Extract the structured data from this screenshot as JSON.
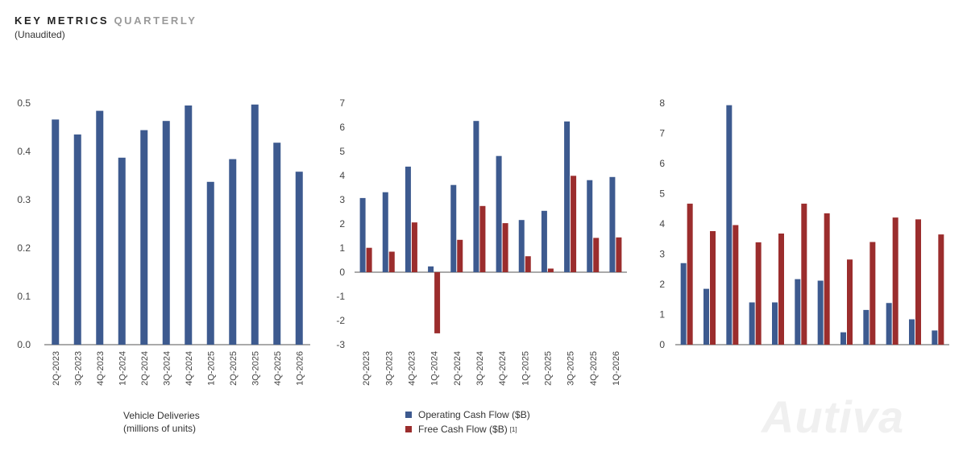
{
  "header": {
    "title_main": "KEY METRICS",
    "title_sub": "QUARTERLY",
    "subtitle": "(Unaudited)"
  },
  "watermark": "Autiva",
  "colors": {
    "blue": "#3d5a8f",
    "red": "#9b2d2d",
    "axis": "#444444"
  },
  "chart_data": [
    {
      "type": "bar",
      "caption_line1": "Vehicle Deliveries",
      "caption_line2": "(millions of units)",
      "categories": [
        "2Q-2023",
        "3Q-2023",
        "4Q-2023",
        "1Q-2024",
        "2Q-2024",
        "3Q-2024",
        "4Q-2024",
        "1Q-2025",
        "2Q-2025",
        "3Q-2025",
        "4Q-2025",
        "1Q-2026"
      ],
      "yticks": [
        "0.0",
        "0.1",
        "0.2",
        "0.3",
        "0.4",
        "0.5"
      ],
      "ylim": [
        0,
        0.5
      ],
      "series": [
        {
          "values": [
            0.466,
            0.435,
            0.484,
            0.387,
            0.444,
            0.463,
            0.495,
            0.337,
            0.384,
            0.497,
            0.418,
            0.358
          ]
        }
      ]
    },
    {
      "type": "bar",
      "categories": [
        "2Q-2023",
        "3Q-2023",
        "4Q-2023",
        "1Q-2024",
        "2Q-2024",
        "3Q-2024",
        "4Q-2024",
        "1Q-2025",
        "2Q-2025",
        "3Q-2025",
        "4Q-2025",
        "1Q-2026"
      ],
      "yticks": [
        "-3",
        "-2",
        "-1",
        "0",
        "1",
        "2",
        "3",
        "4",
        "5",
        "6",
        "7"
      ],
      "ylim": [
        -3,
        7
      ],
      "legend_placement": "bottom",
      "series": [
        {
          "name": "Operating Cash Flow ($B)",
          "values": [
            3.07,
            3.31,
            4.37,
            0.24,
            3.61,
            6.26,
            4.81,
            2.16,
            2.54,
            6.24,
            3.81,
            3.94
          ]
        },
        {
          "name": "Free Cash Flow ($B)",
          "note": "[1]",
          "values": [
            1.01,
            0.85,
            2.06,
            -2.53,
            1.34,
            2.74,
            2.03,
            0.66,
            0.15,
            3.99,
            1.42,
            1.44
          ]
        }
      ]
    },
    {
      "type": "bar",
      "yticks": [
        "0",
        "1",
        "2",
        "3",
        "4",
        "5",
        "6",
        "7",
        "8"
      ],
      "ylim": [
        0,
        8
      ],
      "series": [
        {
          "values": [
            2.7,
            1.85,
            7.93,
            1.4,
            1.4,
            2.17,
            2.12,
            0.41,
            1.15,
            1.38,
            0.84,
            0.47
          ]
        },
        {
          "values": [
            4.67,
            3.76,
            3.96,
            3.39,
            3.68,
            4.67,
            4.35,
            2.82,
            3.4,
            4.21,
            4.15,
            3.65
          ]
        }
      ]
    }
  ]
}
